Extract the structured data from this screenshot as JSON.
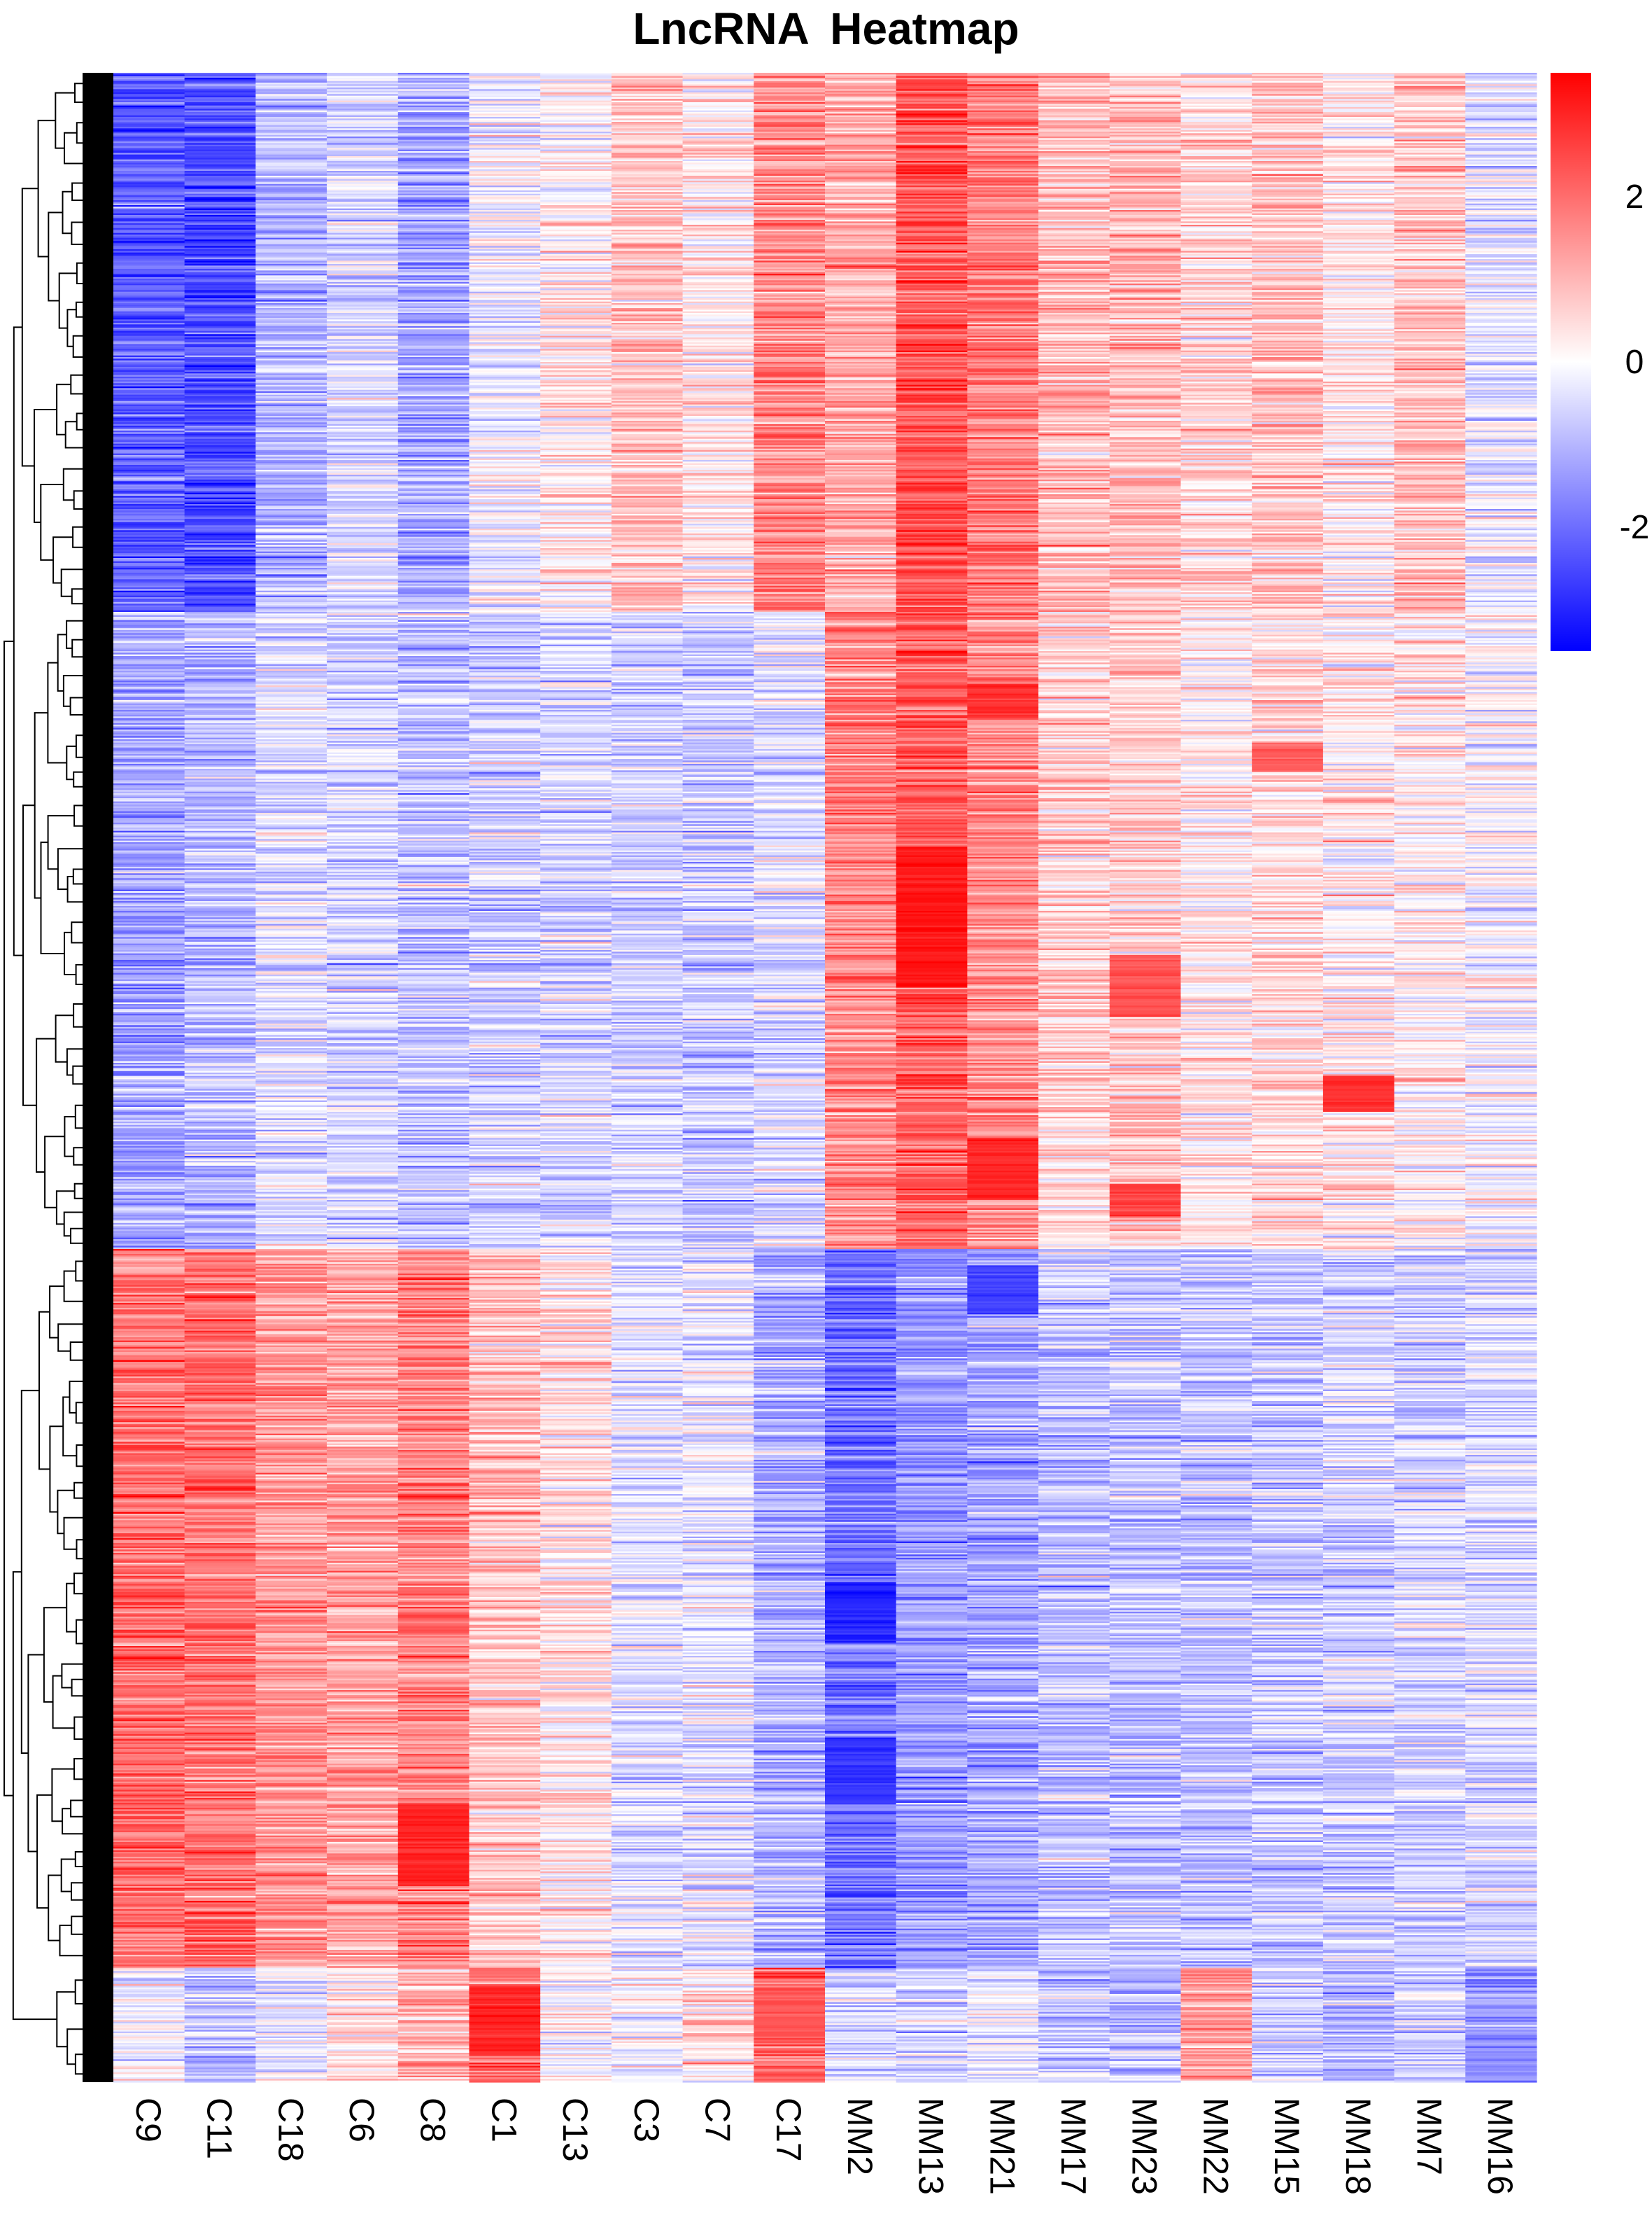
{
  "chart_data": {
    "type": "heatmap",
    "title": "LncRNA  Heatmap",
    "columns": [
      "C9",
      "C11",
      "C18",
      "C6",
      "C8",
      "C1",
      "C13",
      "C3",
      "C7",
      "C17",
      "MM2",
      "MM13",
      "MM21",
      "MM17",
      "MM23",
      "MM22",
      "MM15",
      "MM18",
      "MM7",
      "MM16"
    ],
    "colorbar": {
      "ticks": [
        2,
        0,
        -2
      ],
      "range": [
        -3.5,
        3.5
      ],
      "colors": {
        "low": "#0000ff",
        "mid": "#ffffff",
        "high": "#ff0000"
      },
      "placement": "top-right"
    },
    "row_dendrogram": "left",
    "row_blocks": [
      {
        "name": "block-1",
        "rows": 330,
        "profile": [
          -2.2,
          -2.4,
          -1.0,
          -0.5,
          -1.2,
          -0.2,
          0.2,
          0.8,
          0.3,
          1.6,
          1.2,
          2.4,
          1.8,
          1.0,
          0.9,
          0.6,
          0.8,
          0.3,
          0.8,
          -0.3
        ]
      },
      {
        "name": "block-2",
        "rows": 390,
        "profile": [
          -1.2,
          -1.0,
          -0.4,
          -0.6,
          -0.8,
          -0.6,
          -0.5,
          -0.6,
          -0.7,
          -0.4,
          1.6,
          2.2,
          1.6,
          0.6,
          0.7,
          0.3,
          0.5,
          0.3,
          0.2,
          0.0
        ]
      },
      {
        "name": "block-3",
        "rows": 440,
        "profile": [
          2.0,
          2.0,
          1.5,
          1.3,
          1.8,
          0.8,
          0.4,
          -0.4,
          -0.3,
          -1.1,
          -1.9,
          -1.4,
          -1.2,
          -0.8,
          -0.8,
          -0.8,
          -0.7,
          -0.6,
          -0.6,
          -0.5
        ]
      },
      {
        "name": "block-4",
        "rows": 70,
        "profile": [
          0.0,
          -0.9,
          -0.3,
          0.4,
          1.0,
          2.2,
          0.1,
          0.0,
          0.5,
          2.2,
          -0.5,
          -0.6,
          -0.2,
          -0.8,
          -0.8,
          1.3,
          -0.6,
          -0.9,
          -0.6,
          -1.4
        ]
      }
    ],
    "highlights": [
      {
        "col": 12,
        "row_start": 374,
        "row_end": 396,
        "value": 2.8
      },
      {
        "col": 12,
        "row_start": 652,
        "row_end": 690,
        "value": 3.0
      },
      {
        "col": 17,
        "row_start": 614,
        "row_end": 636,
        "value": 2.8
      },
      {
        "col": 14,
        "row_start": 540,
        "row_end": 578,
        "value": 2.4
      },
      {
        "col": 14,
        "row_start": 680,
        "row_end": 700,
        "value": 2.6
      },
      {
        "col": 16,
        "row_start": 410,
        "row_end": 428,
        "value": 2.2
      },
      {
        "col": 11,
        "row_start": 474,
        "row_end": 560,
        "value": 3.2
      },
      {
        "col": 4,
        "row_start": 1060,
        "row_end": 1110,
        "value": 3.0
      },
      {
        "col": 5,
        "row_start": 1172,
        "row_end": 1214,
        "value": 3.0
      },
      {
        "col": 9,
        "row_start": 1172,
        "row_end": 1205,
        "value": 2.3
      },
      {
        "col": 10,
        "row_start": 924,
        "row_end": 960,
        "value": -3.0
      },
      {
        "col": 10,
        "row_start": 1020,
        "row_end": 1060,
        "value": -2.8
      },
      {
        "col": 12,
        "row_start": 730,
        "row_end": 760,
        "value": -2.6
      }
    ]
  }
}
